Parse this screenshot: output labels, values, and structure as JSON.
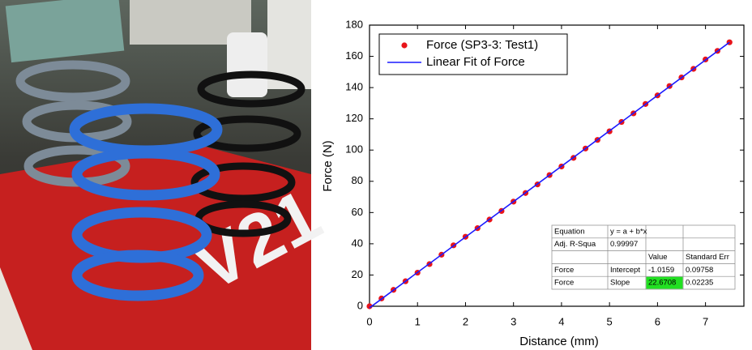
{
  "chart_data": {
    "type": "scatter",
    "x_label": "Distance (mm)",
    "y_label": "Force (N)",
    "xlim": [
      0,
      7.8
    ],
    "ylim": [
      0,
      180
    ],
    "xticks": [
      0,
      1,
      2,
      3,
      4,
      5,
      6,
      7
    ],
    "yticks": [
      0,
      20,
      40,
      60,
      80,
      100,
      120,
      140,
      160,
      180
    ],
    "legend_position": "upper left",
    "series": [
      {
        "name": "Force (SP3-3: Test1)",
        "color": "#e8141a",
        "kind": "points",
        "x": [
          0,
          0.25,
          0.5,
          0.75,
          1,
          1.25,
          1.5,
          1.75,
          2,
          2.25,
          2.5,
          2.75,
          3,
          3.25,
          3.5,
          3.75,
          4,
          4.25,
          4.5,
          4.75,
          5,
          5.25,
          5.5,
          5.75,
          6,
          6.25,
          6.5,
          6.75,
          7,
          7.25,
          7.5
        ],
        "values": [
          0,
          5,
          10.5,
          16,
          21.5,
          27,
          33,
          39,
          44.5,
          50,
          55.5,
          61,
          67,
          72.5,
          78,
          84,
          89.5,
          95,
          101,
          106.5,
          112,
          118,
          123.5,
          129.5,
          135,
          141,
          146.5,
          152,
          158,
          163.5,
          169
        ]
      },
      {
        "name": "Linear Fit of Force",
        "color": "#1a1aff",
        "kind": "line",
        "x": [
          0,
          7.5
        ],
        "values": [
          -1,
          169
        ]
      }
    ],
    "fit_table": {
      "equation_label": "Equation",
      "equation": "y = a + b*x",
      "r2_label": "Adj. R-Squa",
      "r2": 0.99997,
      "headers": [
        "Value",
        "Standard Err"
      ],
      "params": [
        {
          "name": "Force",
          "param": "Intercept",
          "value": -1.0159,
          "error": 0.09758
        },
        {
          "name": "Force",
          "param": "Slope",
          "value": 22.6708,
          "error": 0.02235,
          "highlight": "#22e022"
        }
      ]
    }
  }
}
